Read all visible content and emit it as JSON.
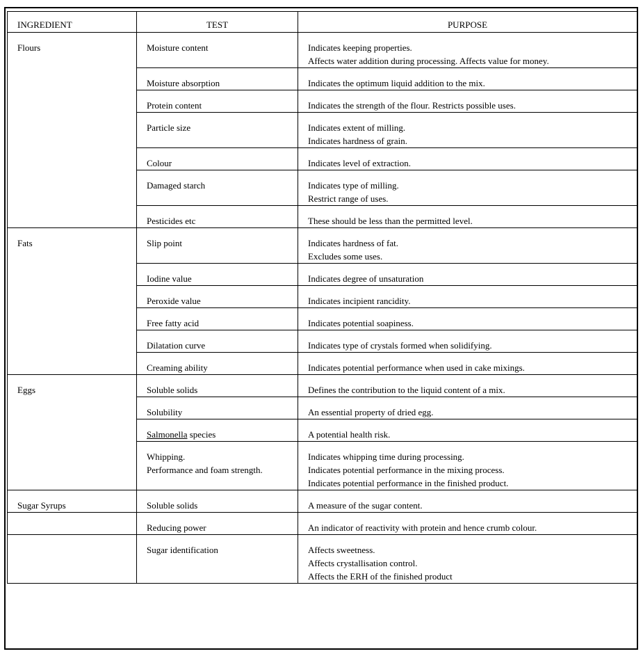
{
  "headers": [
    "INGREDIENT",
    "TEST",
    "PURPOSE"
  ],
  "groups": [
    {
      "ingredient": "Flours",
      "tests": [
        {
          "test": [
            "Moisture content"
          ],
          "purpose": [
            "Indicates keeping properties.",
            "Affects water addition during processing. Affects value for money."
          ]
        },
        {
          "test": [
            "Moisture absorption"
          ],
          "purpose": [
            "Indicates the optimum liquid addition to the mix."
          ]
        },
        {
          "test": [
            "Protein content"
          ],
          "purpose": [
            "Indicates the strength of the flour. Restricts possible uses."
          ]
        },
        {
          "test": [
            "Particle size"
          ],
          "purpose": [
            "Indicates extent of milling.",
            "Indicates hardness of grain."
          ]
        },
        {
          "test": [
            "Colour"
          ],
          "purpose": [
            "Indicates level of extraction."
          ]
        },
        {
          "test": [
            "Damaged starch"
          ],
          "purpose": [
            "Indicates type of milling.",
            "Restrict range of uses."
          ]
        },
        {
          "test": [
            "Pesticides etc"
          ],
          "purpose": [
            "These should be less than the permitted level."
          ]
        }
      ]
    },
    {
      "ingredient": "Fats",
      "tests": [
        {
          "test": [
            "Slip point"
          ],
          "purpose": [
            "Indicates hardness of fat.",
            "Excludes some uses."
          ]
        },
        {
          "test": [
            "Iodine value"
          ],
          "purpose": [
            "Indicates degree of unsaturation"
          ]
        },
        {
          "test": [
            "Peroxide value"
          ],
          "purpose": [
            "Indicates incipient rancidity."
          ]
        },
        {
          "test": [
            "Free fatty acid"
          ],
          "purpose": [
            "Indicates potential soapiness."
          ]
        },
        {
          "test": [
            "Dilatation curve"
          ],
          "purpose": [
            "Indicates type of crystals formed when solidifying."
          ]
        },
        {
          "test": [
            "Creaming ability"
          ],
          "purpose": [
            "Indicates potential performance when used in cake mixings."
          ]
        }
      ]
    },
    {
      "ingredient": "Eggs",
      "tests": [
        {
          "test": [
            "Soluble solids"
          ],
          "purpose": [
            "Defines the contribution to the liquid content of a mix."
          ]
        },
        {
          "test": [
            "Solubility"
          ],
          "purpose": [
            "An essential property of dried egg."
          ]
        },
        {
          "test": [
            "Salmonella species"
          ],
          "underline": "Salmonella",
          "purpose": [
            "A potential health risk."
          ]
        },
        {
          "test": [
            "Whipping.",
            "Performance and foam strength."
          ],
          "purpose": [
            "Indicates whipping time during processing.",
            "Indicates potential performance in the mixing process.",
            "Indicates potential performance in the finished product."
          ]
        }
      ]
    },
    {
      "ingredient": "Sugar Syrups",
      "tests": [
        {
          "test": [
            "Soluble solids"
          ],
          "purpose": [
            "A measure of the sugar content."
          ]
        }
      ]
    },
    {
      "ingredient": "",
      "tests": [
        {
          "test": [
            "Reducing power"
          ],
          "purpose": [
            "An indicator of reactivity with protein and hence crumb colour."
          ]
        }
      ]
    },
    {
      "ingredient": "",
      "tests": [
        {
          "test": [
            "Sugar identification"
          ],
          "purpose": [
            "Affects sweetness.",
            "Affects crystallisation control.",
            "Affects the ERH of the finished product"
          ]
        }
      ]
    }
  ]
}
